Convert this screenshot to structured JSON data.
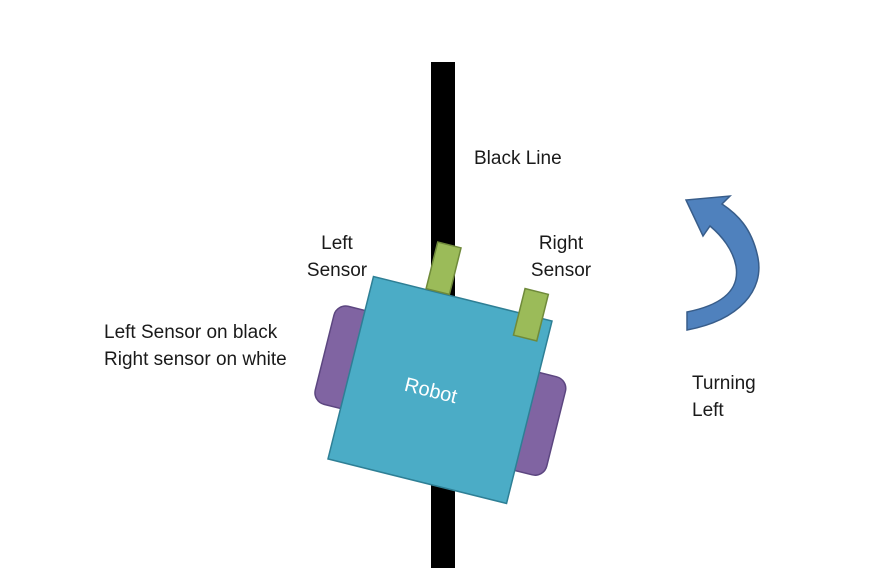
{
  "labels": {
    "black_line": "Black Line",
    "left_sensor_line1": "Left",
    "left_sensor_line2": "Sensor",
    "right_sensor_line1": "Right",
    "right_sensor_line2": "Sensor",
    "robot": "Robot",
    "status_line1": "Left Sensor on black",
    "status_line2": "Right sensor on white",
    "turning_line1": "Turning",
    "turning_line2": "Left"
  },
  "colors": {
    "line": "#000000",
    "robot_body": "#4bacc6",
    "robot_body_stroke": "#2e7f95",
    "wheel": "#8064a2",
    "wheel_stroke": "#5c4680",
    "sensor": "#9bbb59",
    "sensor_stroke": "#6f8a3a",
    "arrow": "#4f81bd",
    "arrow_stroke": "#385d8a"
  },
  "icons": {
    "turn_arrow": "curved-left-arrow-icon"
  }
}
